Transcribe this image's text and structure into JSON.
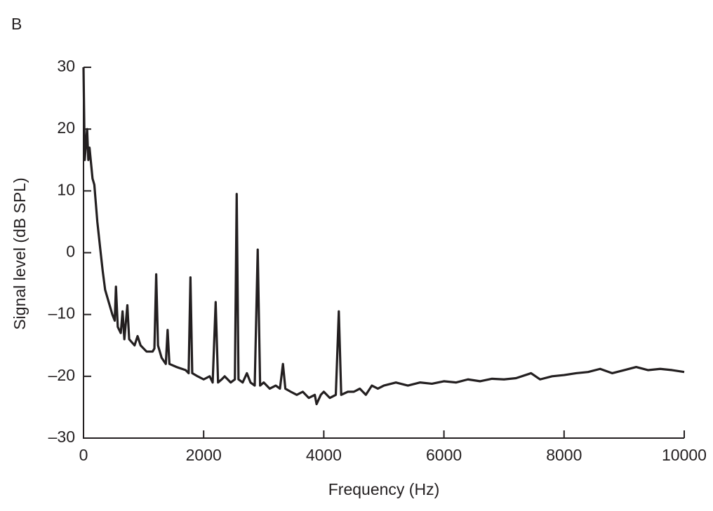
{
  "chart_data": {
    "type": "line",
    "panel_label": "B",
    "x_label": "Frequency (Hz)",
    "y_label": "Signal level (dB SPL)",
    "color": "#231f20",
    "x": [
      0,
      20,
      60,
      80,
      100,
      150,
      180,
      230,
      280,
      320,
      360,
      420,
      480,
      520,
      540,
      570,
      620,
      650,
      680,
      730,
      760,
      850,
      900,
      950,
      1050,
      1150,
      1180,
      1210,
      1240,
      1300,
      1370,
      1400,
      1430,
      1550,
      1700,
      1750,
      1780,
      1810,
      1900,
      2000,
      2100,
      2150,
      2200,
      2240,
      2300,
      2350,
      2450,
      2520,
      2550,
      2580,
      2650,
      2720,
      2780,
      2850,
      2900,
      2940,
      3000,
      3100,
      3200,
      3270,
      3320,
      3360,
      3450,
      3550,
      3650,
      3750,
      3850,
      3880,
      3950,
      4000,
      4100,
      4200,
      4250,
      4290,
      4400,
      4500,
      4600,
      4700,
      4800,
      4900,
      5000,
      5200,
      5400,
      5600,
      5800,
      6000,
      6200,
      6400,
      6600,
      6800,
      7000,
      7200,
      7450,
      7600,
      7800,
      8000,
      8200,
      8400,
      8600,
      8800,
      9000,
      9200,
      9400,
      9600,
      9800,
      10000
    ],
    "values": [
      30,
      15,
      20,
      15,
      17,
      12,
      11,
      5,
      0.5,
      -3,
      -6,
      -8,
      -10,
      -11,
      -5.5,
      -12,
      -13,
      -9.5,
      -14,
      -8.5,
      -14,
      -15,
      -13.5,
      -15,
      -16,
      -16,
      -15.5,
      -3.5,
      -15,
      -17,
      -18,
      -12.5,
      -18,
      -18.5,
      -19,
      -19.5,
      -4,
      -19.5,
      -20,
      -20.5,
      -20,
      -21,
      -8,
      -21,
      -20.5,
      -20,
      -21,
      -20.5,
      9.5,
      -20.5,
      -21,
      -19.5,
      -21,
      -21.5,
      0.5,
      -21.5,
      -21,
      -22,
      -21.5,
      -22,
      -18,
      -22,
      -22.5,
      -23,
      -22.5,
      -23.5,
      -23,
      -24.5,
      -23,
      -22.5,
      -23.5,
      -23,
      -9.5,
      -23,
      -22.5,
      -22.5,
      -22,
      -23,
      -21.5,
      -22,
      -21.5,
      -21,
      -21.5,
      -21,
      -21.2,
      -20.8,
      -21,
      -20.5,
      -20.8,
      -20.4,
      -20.5,
      -20.3,
      -19.5,
      -20.5,
      -20,
      -19.8,
      -19.5,
      -19.3,
      -18.8,
      -19.5,
      -19,
      -18.5,
      -19,
      -18.8,
      -19,
      -19.3
    ],
    "xlim": [
      0,
      10000
    ],
    "xticks": [
      0,
      2000,
      4000,
      6000,
      8000,
      10000
    ],
    "ylim": [
      -30,
      30
    ],
    "yticks": [
      {
        "value": -30,
        "label": "–30"
      },
      {
        "value": -20,
        "label": "–20"
      },
      {
        "value": -10,
        "label": "–10"
      },
      0,
      10,
      20,
      30
    ]
  }
}
